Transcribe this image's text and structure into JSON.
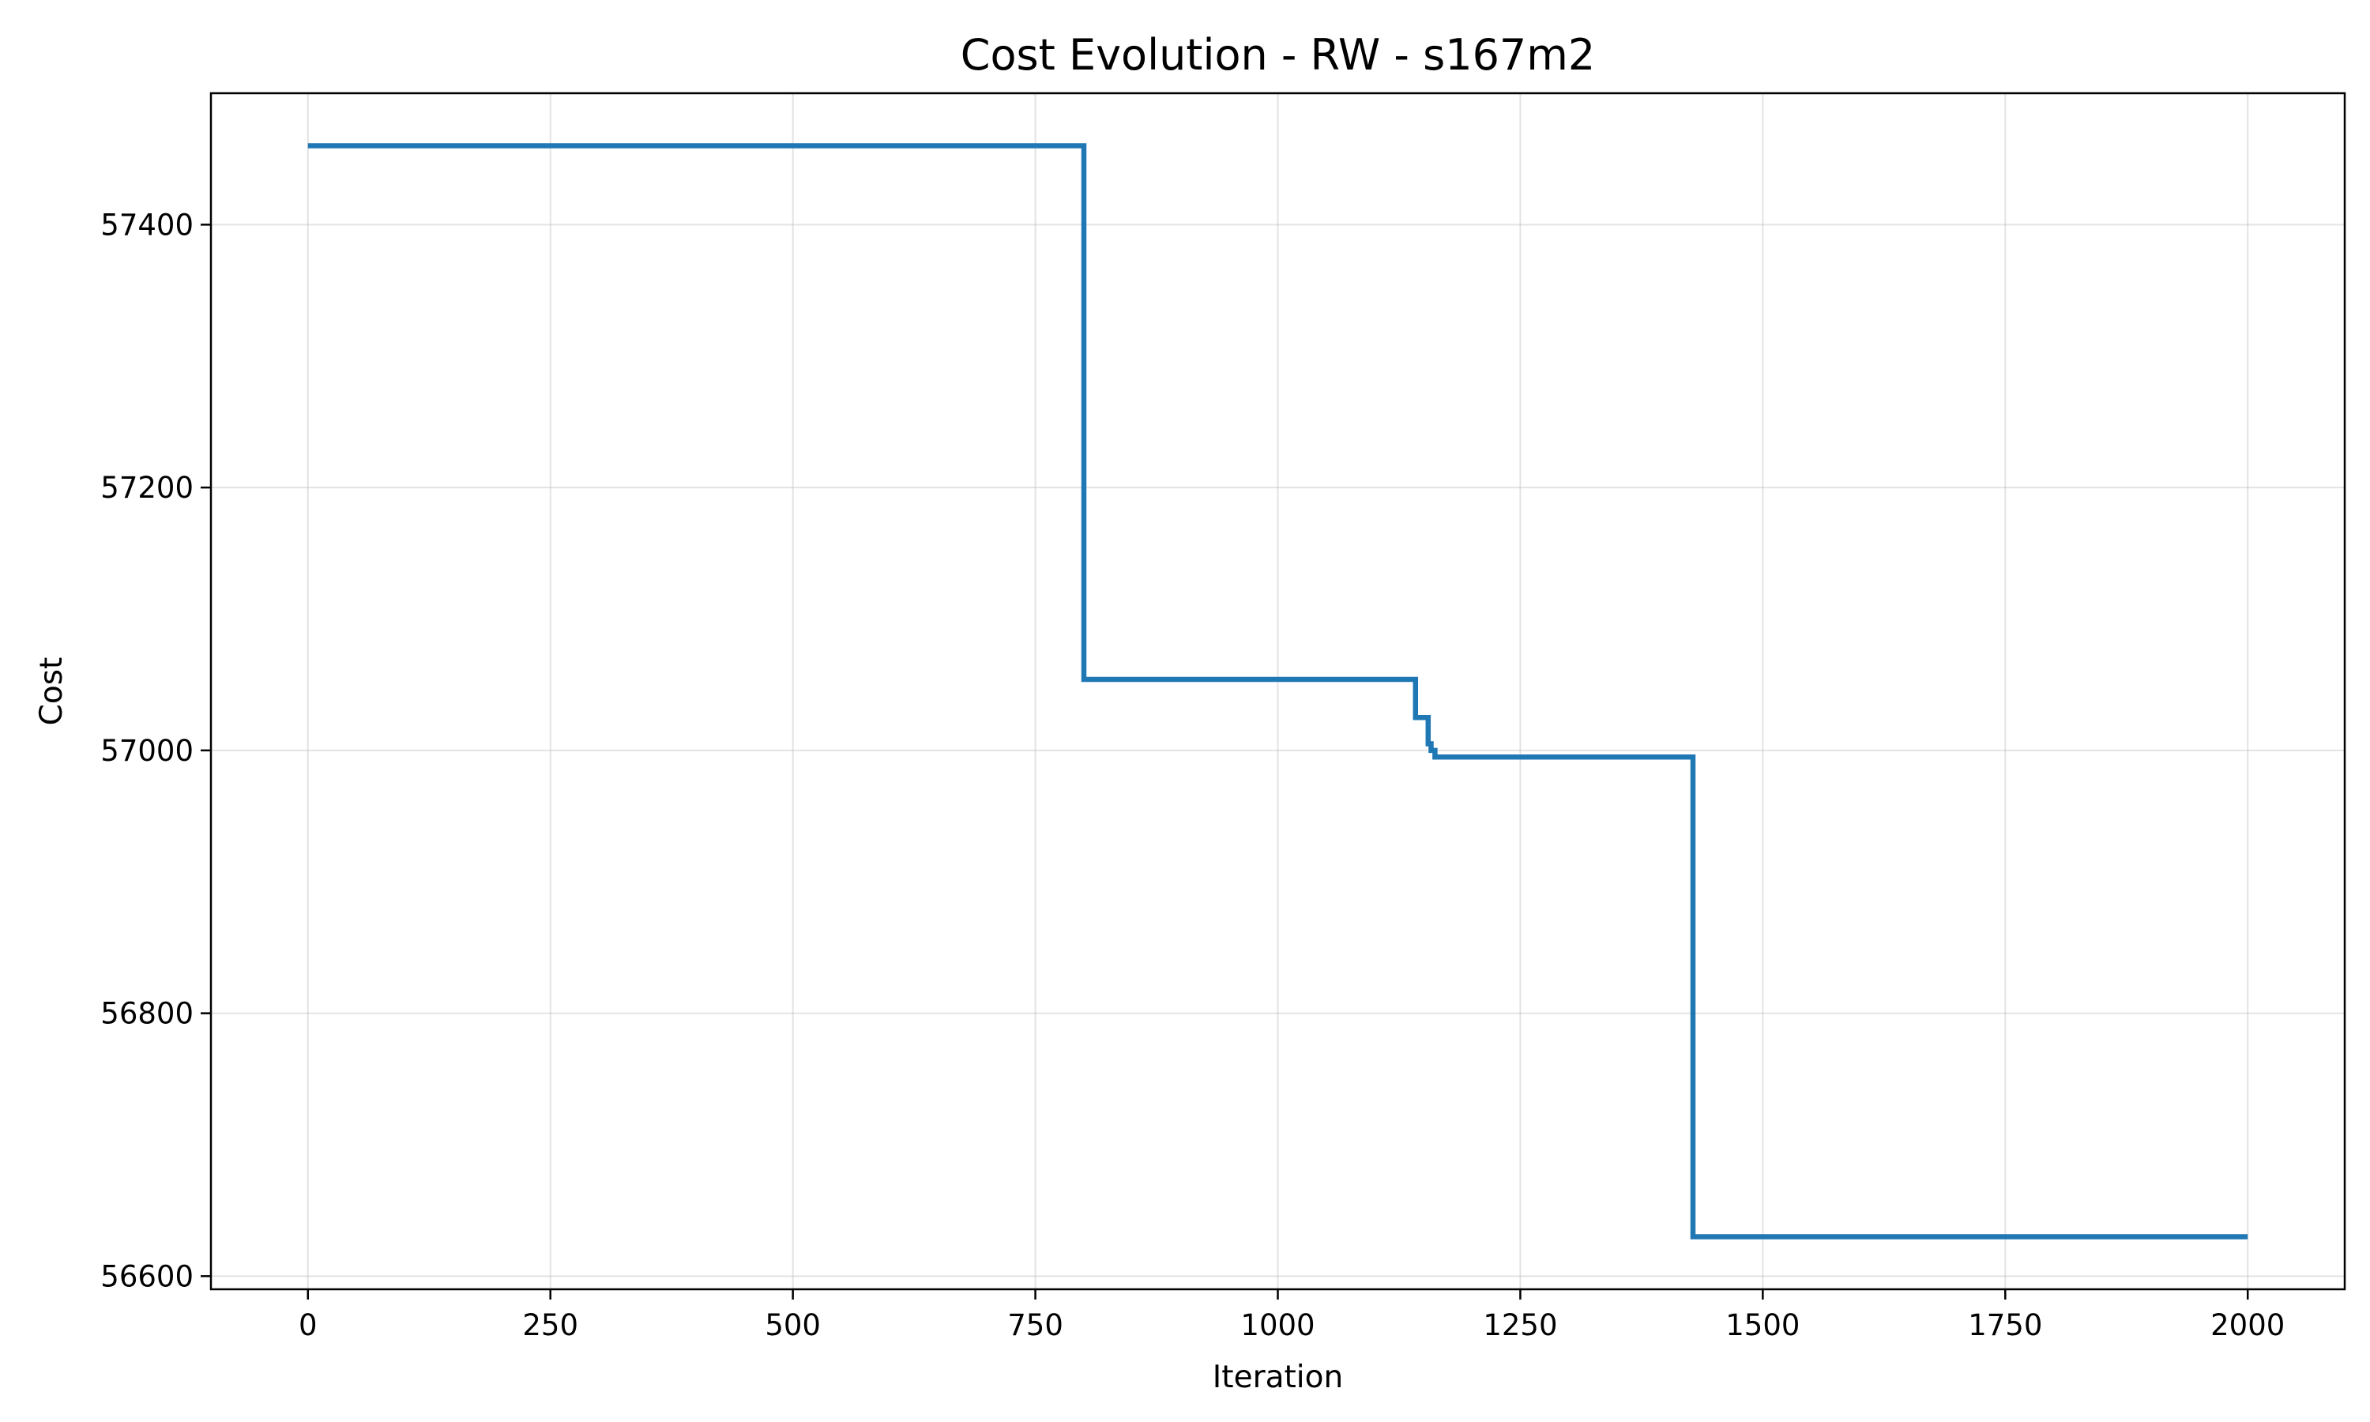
{
  "chart_data": {
    "type": "line",
    "title": "Cost Evolution - RW - s167m2",
    "xlabel": "Iteration",
    "ylabel": "Cost",
    "xlim": [
      -100,
      2100
    ],
    "ylim": [
      56590,
      57500
    ],
    "xticks": [
      0,
      250,
      500,
      750,
      1000,
      1250,
      1500,
      1750,
      2000
    ],
    "xtick_labels": [
      "0",
      "250",
      "500",
      "750",
      "1000",
      "1250",
      "1500",
      "1750",
      "2000"
    ],
    "yticks": [
      56600,
      56800,
      57000,
      57200,
      57400
    ],
    "ytick_labels": [
      "56600",
      "56800",
      "57000",
      "57200",
      "57400"
    ],
    "grid": true,
    "line_color": "#1f77b4",
    "series": [
      {
        "step": "post",
        "x": [
          0,
          800,
          1142,
          1155,
          1158,
          1162,
          1428,
          2000
        ],
        "y": [
          57460,
          57054,
          57025,
          57005,
          57000,
          56995,
          56630,
          56630
        ]
      }
    ]
  }
}
